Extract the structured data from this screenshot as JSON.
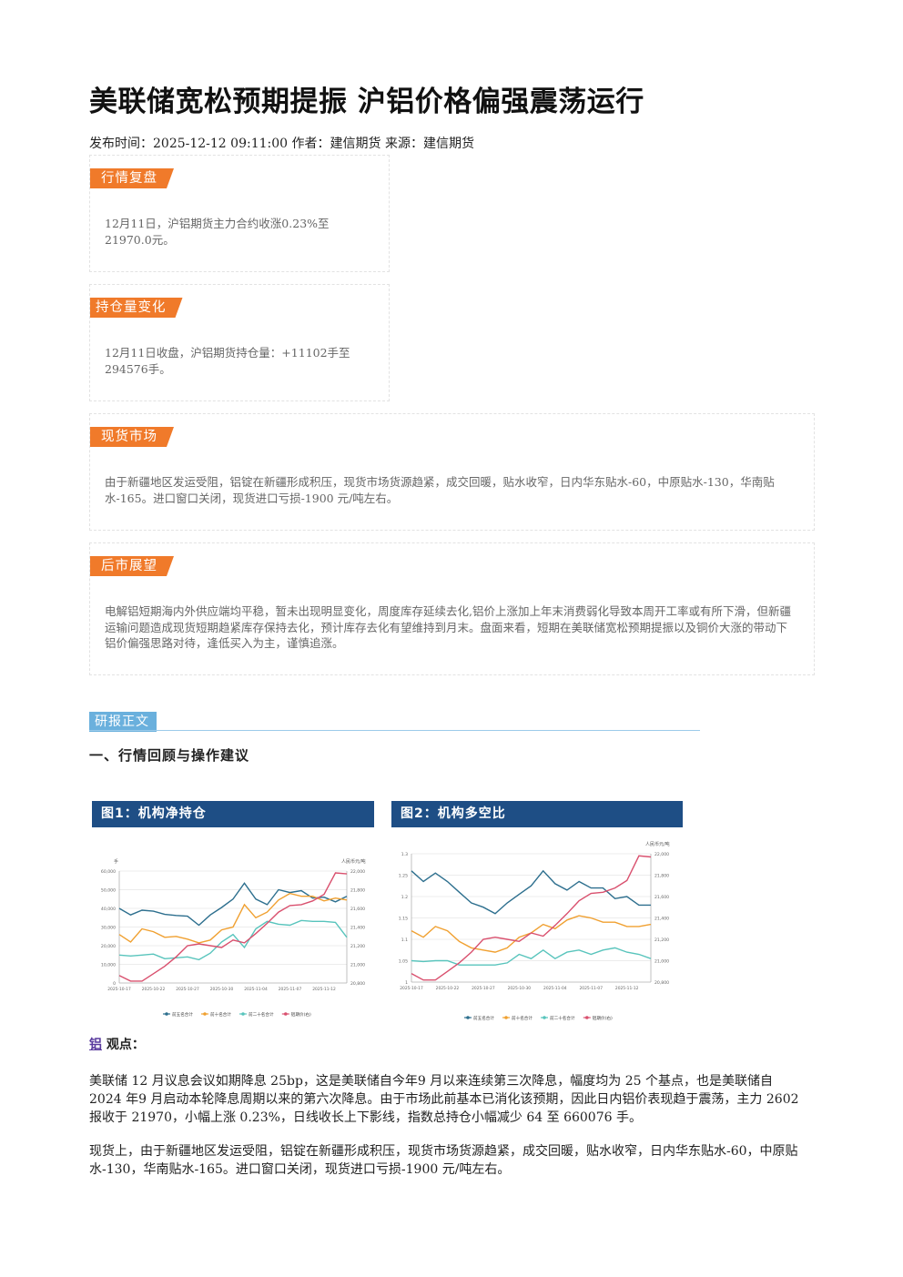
{
  "article": {
    "title": "美联储宽松预期提振 沪铝价格偏强震荡运行",
    "meta": "发布时间：2025-12-12 09:11:00 作者：建信期货 来源：建信期货"
  },
  "boxes": [
    {
      "tag": "行情复盘",
      "text": "12月11日，沪铝期货主力合约收涨0.23%至21970.0元。"
    },
    {
      "tag": "持仓量变化",
      "text": "12月11日收盘，沪铝期货持仓量：+11102手至294576手。"
    },
    {
      "tag": "现货市场",
      "text": "由于新疆地区发运受阻，铝锭在新疆形成积压，现货市场货源趋紧，成交回暖，贴水收窄，日内华东贴水-60，中原贴水-130，华南贴水-165。进口窗口关闭，现货进口亏损-1900 元/吨左右。"
    },
    {
      "tag": "后市展望",
      "text": "电解铝短期海内外供应端均平稳，暂未出现明显变化，周度库存延续去化,铝价上涨加上年末消费弱化导致本周开工率或有所下滑，但新疆运输问题造成现货短期趋紧库存保持去化，预计库存去化有望维持到月末。盘面来看，短期在美联储宽松预期提振以及铜价大涨的带动下铝价偏强思路对待，逢低买入为主，谨慎追涨。"
    }
  ],
  "report": {
    "tag": "研报正文",
    "section1": "一、行情回顾与操作建议"
  },
  "figures": [
    {
      "title": "图1：机构净持仓",
      "left_unit": "手",
      "right_unit": "人民币元/吨"
    },
    {
      "title": "图2：机构多空比",
      "right_unit": "人民币元/吨"
    }
  ],
  "chart_data": [
    {
      "type": "line",
      "title": "图1：机构净持仓",
      "x": [
        "2025-10-17",
        "2025-10-20",
        "2025-10-21",
        "2025-10-22",
        "2025-10-23",
        "2025-10-24",
        "2025-10-27",
        "2025-10-28",
        "2025-10-29",
        "2025-10-30",
        "2025-10-31",
        "2025-11-03",
        "2025-11-04",
        "2025-11-05",
        "2025-11-06",
        "2025-11-07",
        "2025-11-10",
        "2025-11-11",
        "2025-11-12",
        "2025-11-13",
        "2025-11-14"
      ],
      "x_tick_labels": [
        "2025-10-17",
        "2025-10-22",
        "2025-10-27",
        "2025-10-30",
        "2025-11-04",
        "2025-11-07",
        "2025-11-12"
      ],
      "y_left": {
        "ylim": [
          0,
          60000
        ],
        "ticks": [
          "0",
          "10,000",
          "20,000",
          "30,000",
          "40,000",
          "50,000",
          "60,000"
        ]
      },
      "y_right": {
        "ylim": [
          20800,
          22000
        ],
        "ticks": [
          "20,800",
          "21,000",
          "21,200",
          "21,400",
          "21,600",
          "21,800",
          "22,000"
        ]
      },
      "series": [
        {
          "name": "前五名合计",
          "axis": "left",
          "color": "#2d6f8e",
          "values": [
            40000,
            36500,
            39000,
            38500,
            36800,
            36200,
            35800,
            31000,
            36500,
            40500,
            45000,
            53500,
            45000,
            42000,
            50000,
            48500,
            49500,
            45500,
            46000,
            43500,
            46500
          ]
        },
        {
          "name": "前十名合计",
          "axis": "left",
          "color": "#f0a030",
          "values": [
            26000,
            22000,
            29000,
            27500,
            24500,
            25000,
            23500,
            21500,
            23000,
            28500,
            30000,
            42000,
            35000,
            38000,
            44500,
            48000,
            46500,
            46500,
            44000,
            45500,
            44500
          ]
        },
        {
          "name": "前二十名合计",
          "axis": "left",
          "color": "#58c4bc",
          "values": [
            15000,
            14500,
            15000,
            15500,
            13000,
            13500,
            14000,
            12500,
            16000,
            22000,
            26000,
            19000,
            29000,
            33000,
            31500,
            31000,
            33500,
            33000,
            33000,
            32500,
            24500
          ]
        },
        {
          "name": "铝期价(右)",
          "axis": "right",
          "color": "#d9506e",
          "values": [
            20880,
            20820,
            20820,
            20900,
            20980,
            21080,
            21200,
            21220,
            21200,
            21180,
            21260,
            21230,
            21330,
            21440,
            21560,
            21630,
            21640,
            21680,
            21750,
            21980,
            21970
          ]
        }
      ],
      "legend": "bottom"
    },
    {
      "type": "line",
      "title": "图2：机构多空比",
      "x": [
        "2025-10-17",
        "2025-10-20",
        "2025-10-21",
        "2025-10-22",
        "2025-10-23",
        "2025-10-24",
        "2025-10-27",
        "2025-10-28",
        "2025-10-29",
        "2025-10-30",
        "2025-10-31",
        "2025-11-03",
        "2025-11-04",
        "2025-11-05",
        "2025-11-06",
        "2025-11-07",
        "2025-11-10",
        "2025-11-11",
        "2025-11-12",
        "2025-11-13",
        "2025-11-14"
      ],
      "x_tick_labels": [
        "2025-10-17",
        "2025-10-22",
        "2025-10-27",
        "2025-10-30",
        "2025-11-04",
        "2025-11-07",
        "2025-11-12"
      ],
      "y_left": {
        "ylim": [
          1.0,
          1.3
        ],
        "ticks": [
          "1",
          "1.05",
          "1.1",
          "1.15",
          "1.2",
          "1.25",
          "1.3"
        ]
      },
      "y_right": {
        "ylim": [
          20800,
          22000
        ],
        "ticks": [
          "20,800",
          "21,000",
          "21,200",
          "21,400",
          "21,600",
          "21,800",
          "22,000"
        ]
      },
      "series": [
        {
          "name": "前五名合计",
          "axis": "left",
          "color": "#2d6f8e",
          "values": [
            1.26,
            1.235,
            1.255,
            1.235,
            1.21,
            1.185,
            1.175,
            1.16,
            1.185,
            1.205,
            1.225,
            1.26,
            1.23,
            1.215,
            1.235,
            1.22,
            1.22,
            1.195,
            1.2,
            1.18,
            1.18
          ]
        },
        {
          "name": "前十名合计",
          "axis": "left",
          "color": "#f0a030",
          "values": [
            1.12,
            1.105,
            1.13,
            1.12,
            1.095,
            1.08,
            1.075,
            1.07,
            1.08,
            1.105,
            1.115,
            1.135,
            1.125,
            1.145,
            1.155,
            1.15,
            1.14,
            1.14,
            1.13,
            1.13,
            1.135
          ]
        },
        {
          "name": "前二十名合计",
          "axis": "left",
          "color": "#58c4bc",
          "values": [
            1.05,
            1.048,
            1.05,
            1.05,
            1.04,
            1.04,
            1.04,
            1.04,
            1.045,
            1.065,
            1.055,
            1.075,
            1.055,
            1.07,
            1.075,
            1.065,
            1.075,
            1.08,
            1.07,
            1.065,
            1.055
          ]
        },
        {
          "name": "铝期价(右)",
          "axis": "right",
          "color": "#d9506e",
          "values": [
            20880,
            20820,
            20820,
            20900,
            20980,
            21080,
            21200,
            21220,
            21200,
            21180,
            21260,
            21230,
            21330,
            21440,
            21560,
            21630,
            21640,
            21680,
            21750,
            21980,
            21970
          ]
        }
      ],
      "legend": "bottom"
    }
  ],
  "view": {
    "link": "铝",
    "label": "观点：",
    "paragraphs": [
      "美联储 12 月议息会议如期降息 25bp，这是美联储自今年9 月以来连续第三次降息，幅度均为 25 个基点，也是美联储自 2024 年9 月启动本轮降息周期以来的第六次降息。由于市场此前基本已消化该预期，因此日内铝价表现趋于震荡，主力 2602 报收于 21970，小幅上涨 0.23%，日线收长上下影线，指数总持仓小幅减少 64 至 660076 手。",
      "现货上，由于新疆地区发运受阻，铝锭在新疆形成积压，现货市场货源趋紧，成交回暖，贴水收窄，日内华东贴水-60，中原贴水-130，华南贴水-165。进口窗口关闭，现货进口亏损-1900 元/吨左右。"
    ]
  }
}
